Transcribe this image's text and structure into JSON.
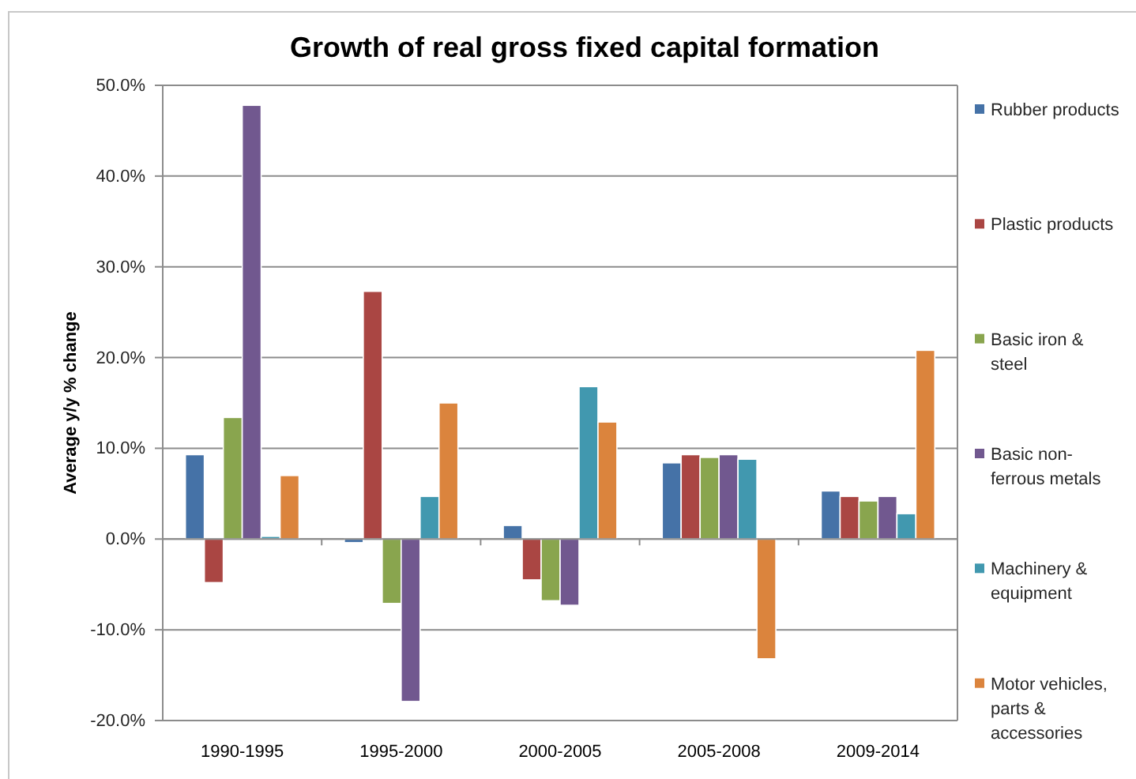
{
  "chart_data": {
    "type": "bar",
    "title": "Growth of real gross fixed capital formation",
    "ylabel": "Average y/y % change",
    "categories": [
      "1990-1995",
      "1995-2000",
      "2000-2005",
      "2005-2008",
      "2009-2014"
    ],
    "series": [
      {
        "name": "Rubber products",
        "color": "#4572a7",
        "values": [
          9.3,
          -0.4,
          1.5,
          8.4,
          5.3
        ]
      },
      {
        "name": "Plastic products",
        "color": "#aa4643",
        "values": [
          -4.8,
          27.3,
          -4.5,
          9.3,
          4.7
        ]
      },
      {
        "name": "Basic iron & steel",
        "color": "#89a54e",
        "values": [
          13.4,
          -7.1,
          -6.8,
          9.0,
          4.2
        ]
      },
      {
        "name": "Basic non-ferrous metals",
        "color": "#71588f",
        "values": [
          47.8,
          -17.9,
          -7.3,
          9.3,
          4.7
        ]
      },
      {
        "name": "Machinery & equipment",
        "color": "#4198af",
        "values": [
          0.3,
          4.7,
          16.8,
          8.8,
          2.8
        ]
      },
      {
        "name": "Motor vehicles, parts & accessories",
        "color": "#db843d",
        "values": [
          7.0,
          15.0,
          12.9,
          -13.2,
          20.8
        ]
      }
    ],
    "ylim": [
      -20,
      50
    ],
    "yticks": [
      {
        "value": -20,
        "label": "-20.0%"
      },
      {
        "value": -10,
        "label": "-10.0%"
      },
      {
        "value": 0,
        "label": "0.0%"
      },
      {
        "value": 10,
        "label": "10.0%"
      },
      {
        "value": 20,
        "label": "20.0%"
      },
      {
        "value": 30,
        "label": "30.0%"
      },
      {
        "value": 40,
        "label": "40.0%"
      },
      {
        "value": 50,
        "label": "50.0%"
      }
    ],
    "grid": "y",
    "legend": "right"
  }
}
